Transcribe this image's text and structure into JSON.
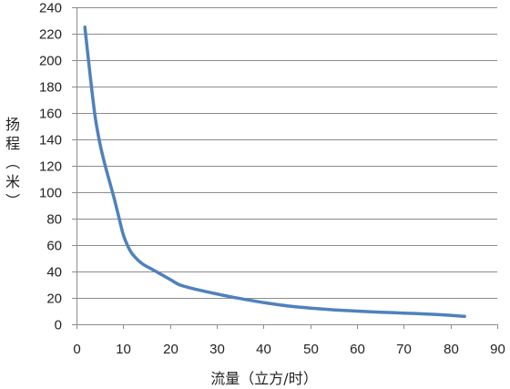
{
  "chart_data": {
    "type": "line",
    "title": "",
    "xlabel": "流量（立方/时）",
    "ylabel": "扬程（米）",
    "xlim": [
      0,
      90
    ],
    "ylim": [
      0,
      240
    ],
    "x_ticks": [
      "0",
      "10",
      "20",
      "30",
      "40",
      "50",
      "60",
      "70",
      "80",
      "90"
    ],
    "y_ticks": [
      "0",
      "20",
      "40",
      "60",
      "80",
      "100",
      "120",
      "140",
      "160",
      "180",
      "200",
      "220",
      "240"
    ],
    "grid": "horizontal",
    "legend": "none",
    "series": [
      {
        "color": "#4f81bd",
        "x": [
          1.8,
          3,
          4,
          5,
          6,
          7,
          8,
          9,
          10,
          11,
          12,
          14,
          16,
          18,
          20,
          22,
          25,
          30,
          35,
          40,
          45,
          50,
          55,
          60,
          65,
          70,
          75,
          80,
          83
        ],
        "y": [
          225,
          186,
          157,
          137,
          122,
          109,
          96,
          82,
          68,
          59,
          53,
          46,
          42,
          38,
          34,
          30,
          27,
          23,
          19.5,
          16.5,
          14,
          12.3,
          11,
          10,
          9.2,
          8.5,
          7.8,
          6.8,
          6
        ]
      }
    ]
  }
}
